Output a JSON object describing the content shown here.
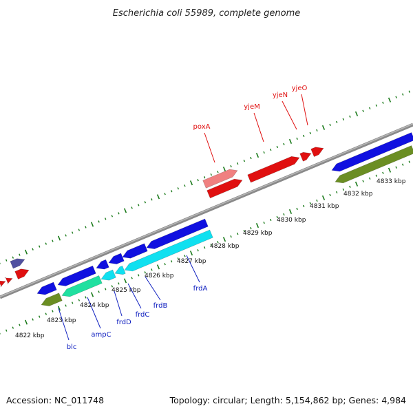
{
  "title": "Escherichia coli 55989, complete genome",
  "footer": {
    "accession": "Accession: NC_011748",
    "topology": "Topology: circular; Length: 5,154,862 bp; Genes: 4,984"
  },
  "colors": {
    "backbone": "#808080",
    "tick": "#1a7a1a",
    "forward_cds": "#e01010",
    "pseudo": "#f08080",
    "reverse_cds": "#1010e0",
    "cyan_cds": "#10e0f0",
    "green_cds": "#20e0a0",
    "olive_cds": "#6b8e23",
    "purple_cds": "#5050a0"
  },
  "scale": {
    "labels": [
      "4822 kbp",
      "4823 kbp",
      "4824 kbp",
      "4825 kbp",
      "4826 kbp",
      "4827 kbp",
      "4828 kbp",
      "4829 kbp",
      "4830 kbp",
      "4831 kbp",
      "4832 kbp",
      "4833 kbp"
    ]
  },
  "genes_top": [
    {
      "name": "poxA"
    },
    {
      "name": "yjeM"
    },
    {
      "name": "yjeN"
    },
    {
      "name": "yjeO"
    }
  ],
  "genes_bottom": [
    {
      "name": "blc"
    },
    {
      "name": "ampC"
    },
    {
      "name": "frdD"
    },
    {
      "name": "frdC"
    },
    {
      "name": "frdB"
    },
    {
      "name": "frdA"
    }
  ]
}
